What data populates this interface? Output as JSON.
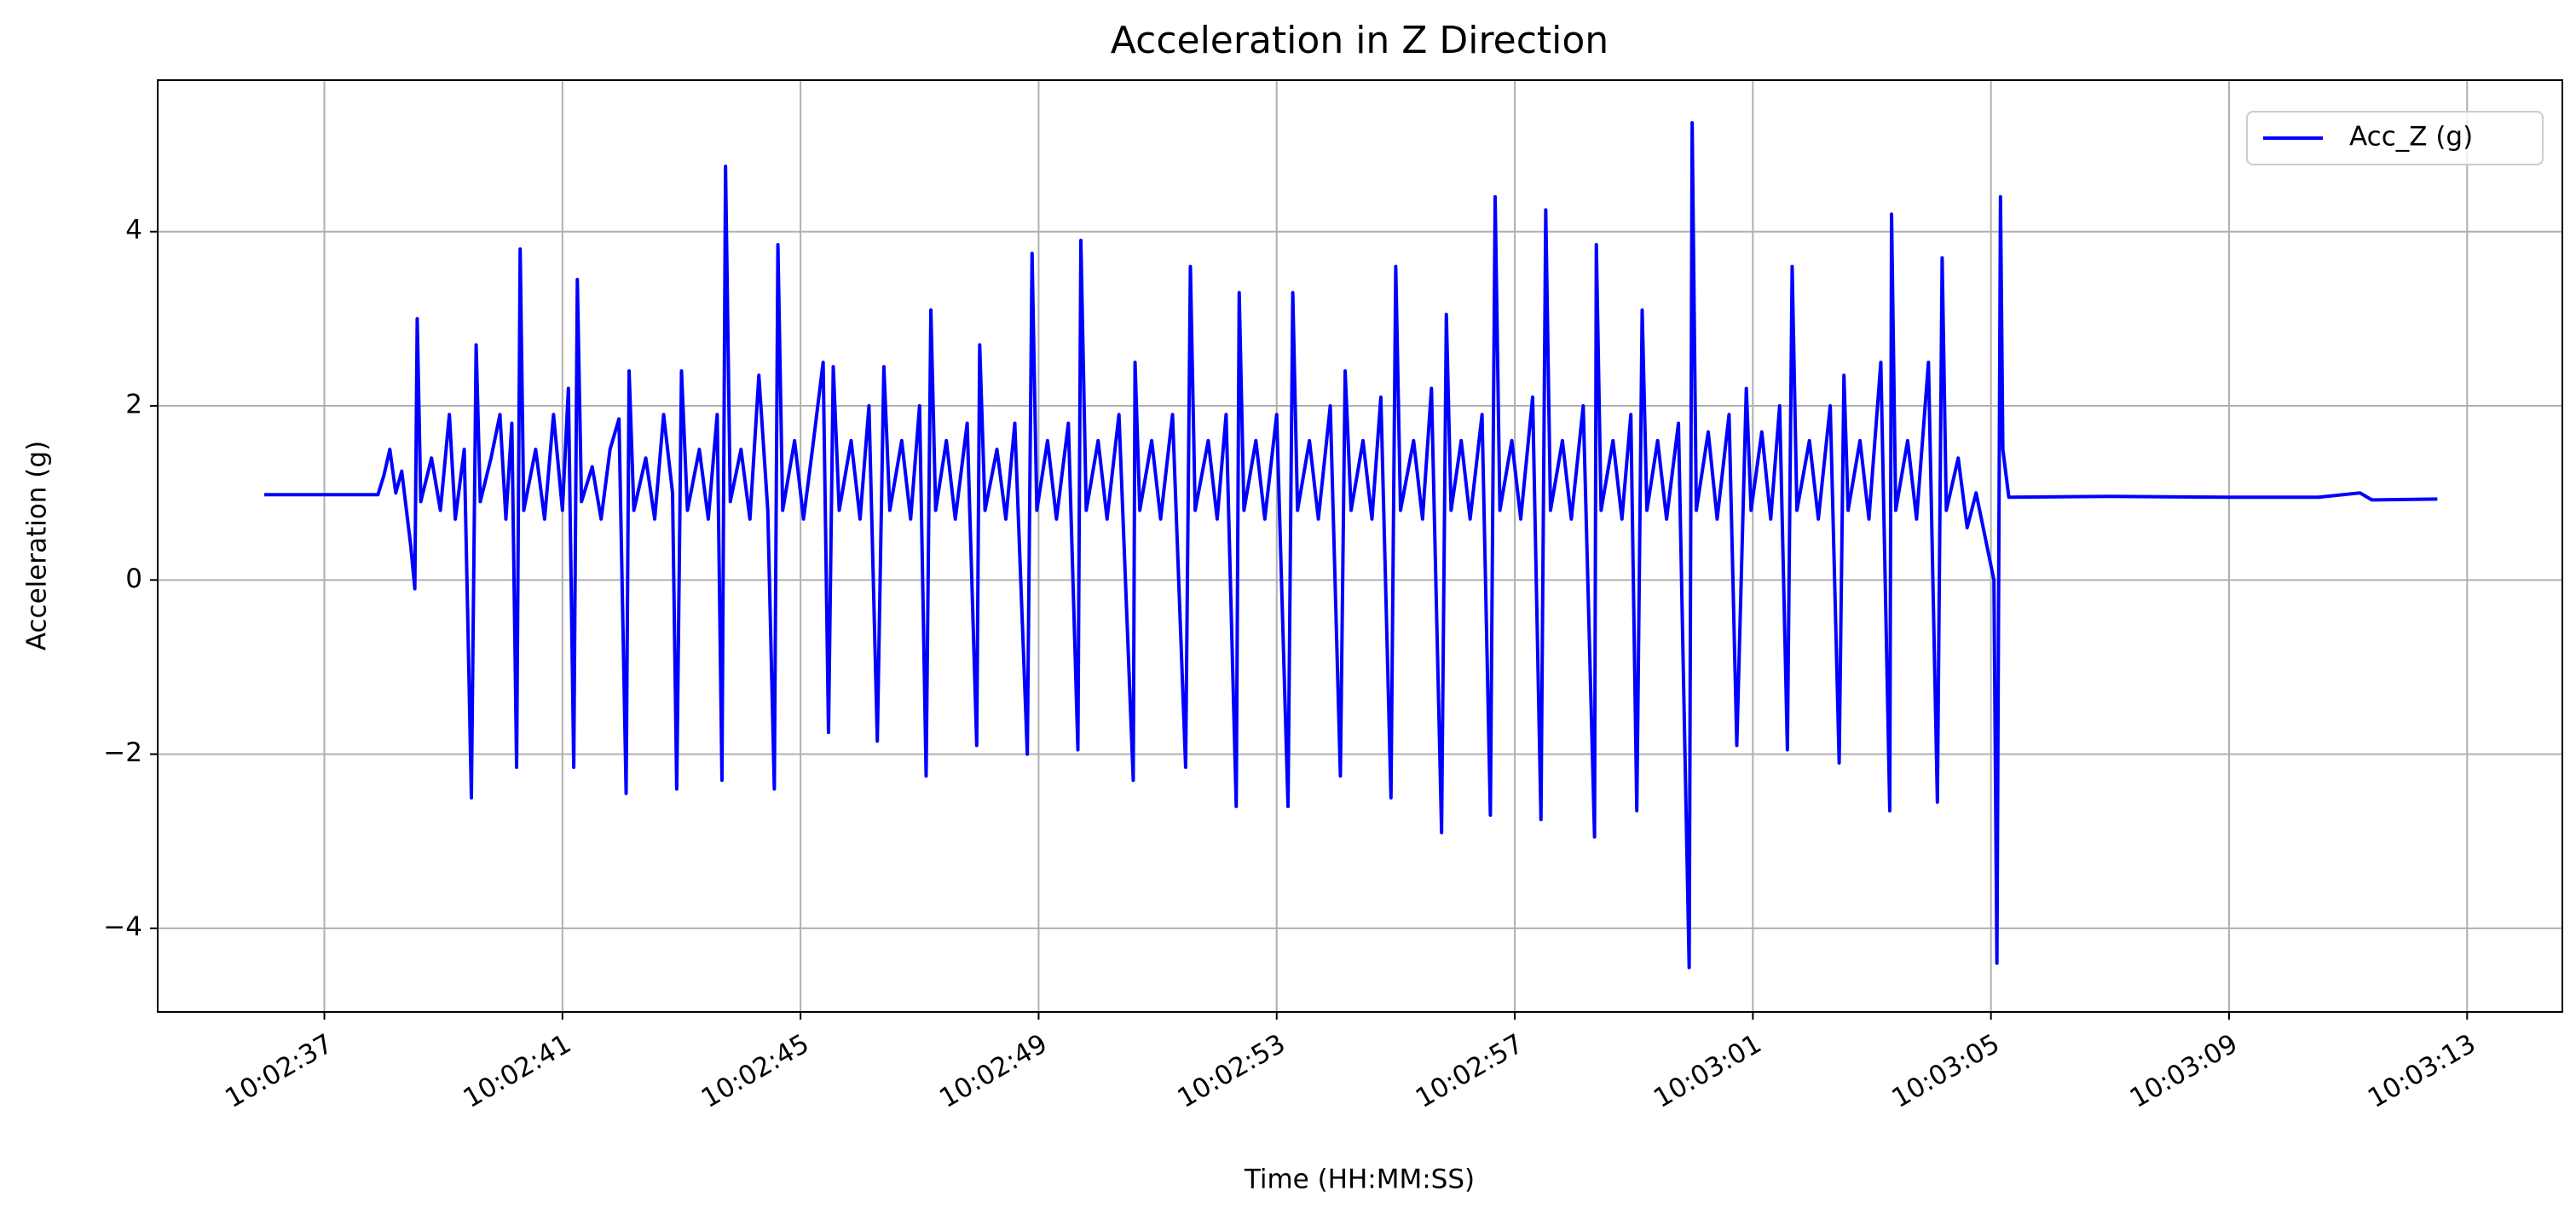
{
  "chart_data": {
    "type": "line",
    "title": "Acceleration in Z Direction",
    "xlabel": "Time (HH:MM:SS)",
    "ylabel": "Acceleration (g)",
    "x": [
      36155.99,
      36157.9,
      36158.0,
      36158.1,
      36158.2,
      36158.3,
      36158.45,
      36158.52,
      36158.56,
      36158.62,
      36158.8,
      36158.95,
      36159.1,
      36159.2,
      36159.35,
      36159.42,
      36159.47,
      36159.55,
      36159.62,
      36159.8,
      36159.95,
      36160.05,
      36160.15,
      36160.23,
      36160.29,
      36160.35,
      36160.55,
      36160.7,
      36160.85,
      36161.0,
      36161.1,
      36161.19,
      36161.25,
      36161.32,
      36161.5,
      36161.65,
      36161.8,
      36161.95,
      36162.07,
      36162.12,
      36162.2,
      36162.4,
      36162.55,
      36162.7,
      36162.85,
      36162.92,
      36163.0,
      36163.1,
      36163.3,
      36163.45,
      36163.6,
      36163.68,
      36163.74,
      36163.82,
      36164.0,
      36164.15,
      36164.3,
      36164.45,
      36164.56,
      36164.62,
      36164.7,
      36164.9,
      36165.05,
      36165.2,
      36165.38,
      36165.47,
      36165.55,
      36165.65,
      36165.85,
      36166.0,
      36166.15,
      36166.29,
      36166.4,
      36166.5,
      36166.7,
      36166.85,
      36167.0,
      36167.11,
      36167.19,
      36167.27,
      36167.45,
      36167.6,
      36167.8,
      36167.96,
      36168.01,
      36168.1,
      36168.3,
      36168.45,
      36168.6,
      36168.81,
      36168.89,
      36168.97,
      36169.15,
      36169.3,
      36169.5,
      36169.66,
      36169.71,
      36169.8,
      36170.0,
      36170.15,
      36170.35,
      36170.59,
      36170.62,
      36170.7,
      36170.9,
      36171.05,
      36171.25,
      36171.47,
      36171.55,
      36171.63,
      36171.85,
      36172.0,
      36172.15,
      36172.32,
      36172.37,
      36172.45,
      36172.65,
      36172.8,
      36173.0,
      36173.19,
      36173.27,
      36173.35,
      36173.55,
      36173.7,
      36173.9,
      36174.07,
      36174.15,
      36174.25,
      36174.45,
      36174.6,
      36174.75,
      36174.92,
      36175.0,
      36175.08,
      36175.3,
      36175.45,
      36175.6,
      36175.77,
      36175.85,
      36175.93,
      36176.1,
      36176.25,
      36176.45,
      36176.59,
      36176.67,
      36176.75,
      36176.95,
      36177.1,
      36177.3,
      36177.44,
      36177.52,
      36177.6,
      36177.8,
      36177.95,
      36178.15,
      36178.34,
      36178.37,
      36178.45,
      36178.65,
      36178.8,
      36178.95,
      36179.05,
      36179.14,
      36179.22,
      36179.4,
      36179.55,
      36179.75,
      36179.93,
      36179.98,
      36180.05,
      36180.25,
      36180.4,
      36180.6,
      36180.73,
      36180.89,
      36180.97,
      36181.15,
      36181.3,
      36181.45,
      36181.58,
      36181.66,
      36181.74,
      36181.95,
      36182.1,
      36182.3,
      36182.45,
      36182.53,
      36182.6,
      36182.8,
      36182.95,
      36183.15,
      36183.3,
      36183.33,
      36183.4,
      36183.6,
      36183.75,
      36183.95,
      36184.1,
      36184.18,
      36184.25,
      36184.45,
      36184.6,
      36184.75,
      36184.9,
      36185.05,
      36185.1,
      36185.16,
      36185.2,
      36185.3,
      36187.0,
      36189.0,
      36190.5,
      36191.2,
      36191.4,
      36192.5
    ],
    "series": [
      {
        "name": "Acc_Z (g)",
        "color": "#0000ff",
        "values": [
          0.98,
          0.98,
          1.2,
          1.5,
          1.0,
          1.25,
          0.4,
          -0.1,
          3.0,
          0.9,
          1.4,
          0.8,
          1.9,
          0.7,
          1.5,
          -0.8,
          -2.5,
          2.7,
          0.9,
          1.4,
          1.9,
          0.7,
          1.8,
          -2.15,
          3.8,
          0.8,
          1.5,
          0.7,
          1.9,
          0.8,
          2.2,
          -2.15,
          3.45,
          0.9,
          1.3,
          0.7,
          1.5,
          1.85,
          -2.45,
          2.4,
          0.8,
          1.4,
          0.7,
          1.9,
          1.0,
          -2.4,
          2.4,
          0.8,
          1.5,
          0.7,
          1.9,
          -2.3,
          4.75,
          0.9,
          1.5,
          0.7,
          2.35,
          0.8,
          -2.4,
          3.85,
          0.8,
          1.6,
          0.7,
          1.5,
          2.5,
          -1.75,
          2.45,
          0.8,
          1.6,
          0.7,
          2.0,
          -1.85,
          2.45,
          0.8,
          1.6,
          0.7,
          2.0,
          -2.25,
          3.1,
          0.8,
          1.6,
          0.7,
          1.8,
          -1.9,
          2.7,
          0.8,
          1.5,
          0.7,
          1.8,
          -2.0,
          3.75,
          0.8,
          1.6,
          0.7,
          1.8,
          -1.95,
          3.9,
          0.8,
          1.6,
          0.7,
          1.9,
          -2.3,
          2.5,
          0.8,
          1.6,
          0.7,
          1.9,
          -2.15,
          3.6,
          0.8,
          1.6,
          0.7,
          1.9,
          -2.6,
          3.3,
          0.8,
          1.6,
          0.7,
          1.9,
          -2.6,
          3.3,
          0.8,
          1.6,
          0.7,
          2.0,
          -2.25,
          2.4,
          0.8,
          1.6,
          0.7,
          2.1,
          -2.5,
          3.6,
          0.8,
          1.6,
          0.7,
          2.2,
          -2.9,
          3.05,
          0.8,
          1.6,
          0.7,
          1.9,
          -2.7,
          4.4,
          0.8,
          1.6,
          0.7,
          2.1,
          -2.75,
          4.25,
          0.8,
          1.6,
          0.7,
          2.0,
          -2.95,
          3.85,
          0.8,
          1.6,
          0.7,
          1.9,
          -2.65,
          3.1,
          0.8,
          1.6,
          0.7,
          1.8,
          -4.45,
          5.25,
          0.8,
          1.7,
          0.7,
          1.9,
          -1.9,
          2.2,
          0.8,
          1.7,
          0.7,
          2.0,
          -1.95,
          3.6,
          0.8,
          1.6,
          0.7,
          2.0,
          -2.1,
          2.35,
          0.8,
          1.6,
          0.7,
          2.5,
          -2.65,
          4.2,
          0.8,
          1.6,
          0.7,
          2.5,
          -2.55,
          3.7,
          0.8,
          1.4,
          0.6,
          1.0,
          0.5,
          0.0,
          -4.4,
          4.4,
          1.5,
          0.95,
          0.96,
          0.95,
          0.95,
          1.0,
          0.92,
          0.93
        ]
      }
    ],
    "xlim": [
      36154.2,
      36194.6
    ],
    "xticks": [
      {
        "value": 36157,
        "label": "10:02:37"
      },
      {
        "value": 36161,
        "label": "10:02:41"
      },
      {
        "value": 36165,
        "label": "10:02:45"
      },
      {
        "value": 36169,
        "label": "10:02:49"
      },
      {
        "value": 36173,
        "label": "10:02:53"
      },
      {
        "value": 36177,
        "label": "10:02:57"
      },
      {
        "value": 36181,
        "label": "10:03:01"
      },
      {
        "value": 36185,
        "label": "10:03:05"
      },
      {
        "value": 36189,
        "label": "10:03:09"
      },
      {
        "value": 36193,
        "label": "10:03:13"
      }
    ],
    "ylim": [
      -4.96,
      5.74
    ],
    "yticks": [
      {
        "value": -4,
        "label": "−4"
      },
      {
        "value": -2,
        "label": "−2"
      },
      0,
      2,
      4
    ],
    "grid": true,
    "legend": "upper right"
  }
}
